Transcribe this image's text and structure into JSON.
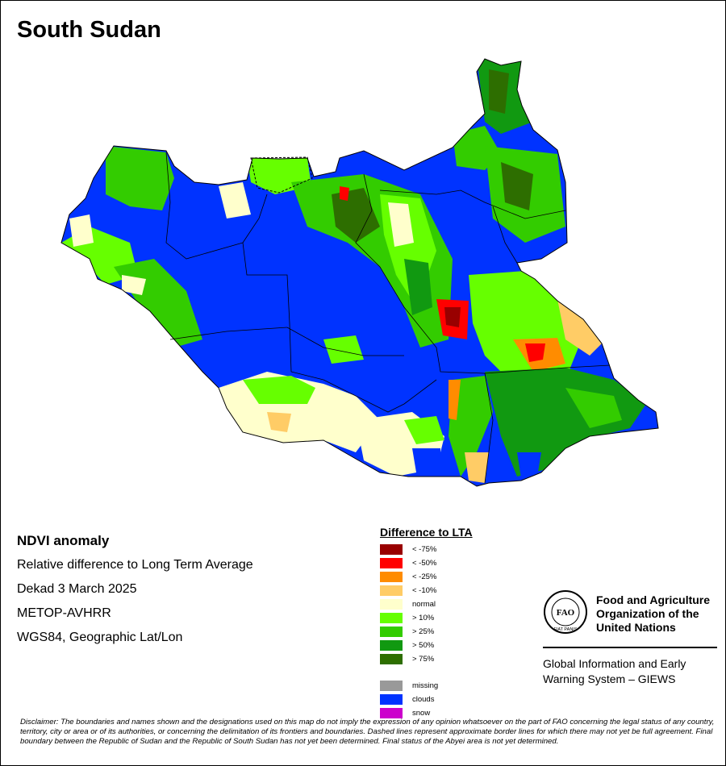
{
  "map": {
    "title": "South Sudan"
  },
  "info": {
    "heading": "NDVI anomaly",
    "line1": "Relative difference to Long Term Average",
    "line2": "Dekad 3 March 2025",
    "line3": "METOP-AVHRR",
    "line4": "WGS84, Geographic Lat/Lon"
  },
  "legend": {
    "title": "Difference to LTA",
    "items": [
      {
        "label": "< -75%",
        "color": "#990000"
      },
      {
        "label": "< -50%",
        "color": "#ff0000"
      },
      {
        "label": "< -25%",
        "color": "#ff8c00"
      },
      {
        "label": "< -10%",
        "color": "#ffcc66"
      },
      {
        "label": "normal",
        "color": "#ffffcc"
      },
      {
        "label": "> 10%",
        "color": "#66ff00"
      },
      {
        "label": "> 25%",
        "color": "#33cc00"
      },
      {
        "label": "> 50%",
        "color": "#119911"
      },
      {
        "label": "> 75%",
        "color": "#2d6e00"
      }
    ],
    "extra": [
      {
        "label": "missing",
        "color": "#999999"
      },
      {
        "label": "clouds",
        "color": "#0033ff"
      },
      {
        "label": "snow",
        "color": "#cc00cc"
      }
    ]
  },
  "fao": {
    "name1": "Food and Agriculture",
    "name2": "Organization of the",
    "name3": "United Nations",
    "logo_letters": "FAO",
    "logo_motto": "FIAT PANIS",
    "giews1": "Global Information and Early",
    "giews2": "Warning System – GIEWS"
  },
  "disclaimer": "Disclaimer: The boundaries and names shown and the designations used on this map do not imply the expression of any opinion whatsoever on the part of FAO concerning the legal status of any country, territory, city or area or of its authorities, or concerning the delimitation of its frontiers and boundaries. Dashed lines represent approximate border lines for which there may not yet be full agreement.  Final boundary between the Republic of Sudan and the Republic of South Sudan has not yet been determined. Final status of the Abyei area is not yet determined."
}
